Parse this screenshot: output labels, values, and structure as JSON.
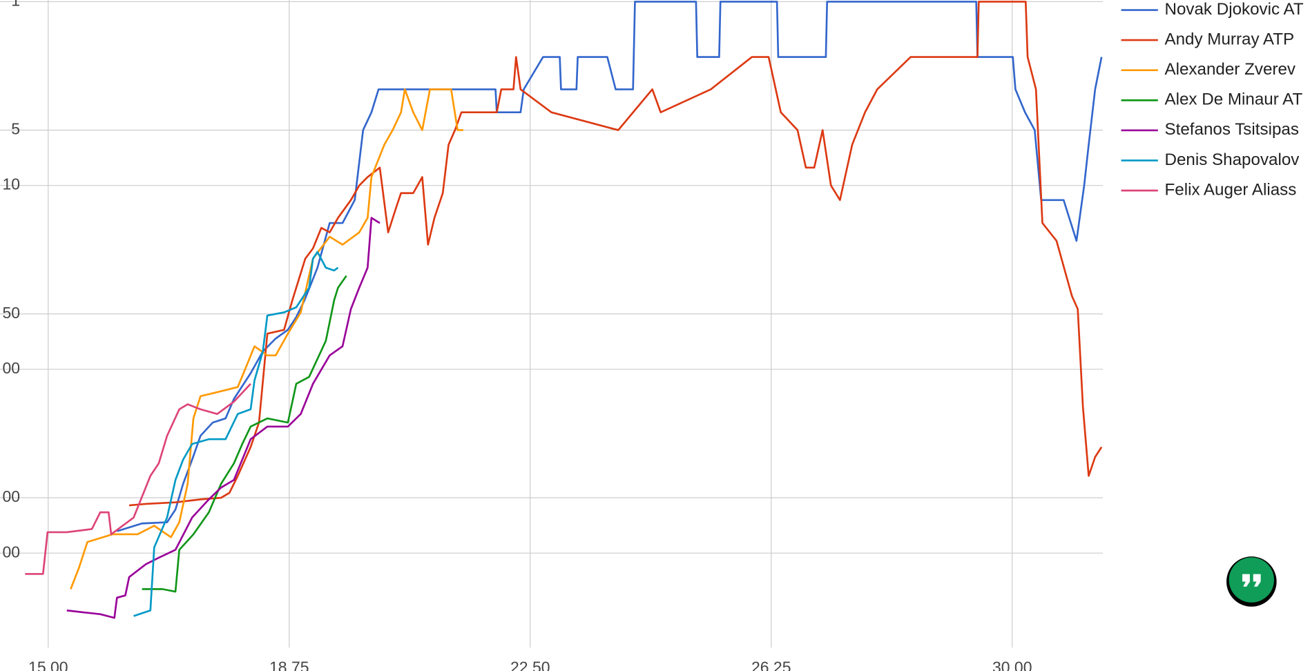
{
  "chart_data": {
    "type": "line",
    "log_scale": true,
    "y_reversed": true,
    "grid": true,
    "legend": "right",
    "xlim": [
      14.25,
      31.41
    ],
    "xticks": [
      {
        "value": 15,
        "label": "15.00"
      },
      {
        "value": 18.75,
        "label": "18.75"
      },
      {
        "value": 22.5,
        "label": "22.50"
      },
      {
        "value": 26.25,
        "label": "26.25"
      },
      {
        "value": 30,
        "label": "30.00"
      }
    ],
    "ylim": [
      1,
      3200
    ],
    "yticks": [
      1,
      5,
      10,
      50,
      {
        "value": 100,
        "label": "00"
      },
      {
        "value": 500,
        "label": "00"
      },
      {
        "value": 1000,
        "label": "00"
      }
    ],
    "series": [
      {
        "name": "Novak Djokovic AT",
        "color": "#3366cc",
        "x": [
          16.07,
          16.46,
          16.85,
          16.98,
          17.1,
          17.24,
          17.37,
          17.56,
          17.76,
          17.89,
          18.15,
          18.34,
          18.54,
          18.73,
          18.86,
          18.99,
          19.19,
          19.38,
          19.58,
          19.77,
          19.9,
          20.03,
          20.14,
          21.96,
          21.98,
          22.35,
          22.4,
          22.7,
          22.96,
          22.98,
          23.22,
          23.24,
          23.7,
          23.83,
          24.1,
          24.13,
          25.08,
          25.1,
          25.44,
          25.46,
          26.34,
          26.36,
          27.1,
          27.12,
          29.44,
          29.46,
          30.01,
          30.05,
          30.2,
          30.35,
          30.45,
          30.8,
          31.0,
          31.12,
          31.19,
          31.29,
          31.39
        ],
        "values": [
          760,
          690,
          680,
          580,
          420,
          310,
          230,
          195,
          185,
          145,
          105,
          80,
          68,
          61,
          52,
          42,
          28,
          16,
          16,
          12,
          5,
          4,
          3,
          3,
          4,
          4,
          3,
          2,
          2,
          3,
          3,
          2,
          2,
          3,
          3,
          1,
          1,
          2,
          2,
          1,
          1,
          2,
          2,
          1,
          1,
          2,
          2,
          3,
          4,
          5,
          12,
          12,
          20,
          10,
          6,
          3,
          2
        ]
      },
      {
        "name": "Andy Murray ATP",
        "color": "#dc3912",
        "x": [
          16.26,
          16.52,
          16.98,
          17.37,
          17.69,
          17.82,
          17.95,
          18.15,
          18.28,
          18.41,
          18.67,
          18.8,
          19.0,
          19.12,
          19.25,
          19.38,
          19.51,
          19.71,
          19.84,
          19.97,
          20.16,
          20.29,
          20.42,
          20.49,
          20.68,
          20.82,
          20.91,
          21.01,
          21.14,
          21.23,
          21.33,
          21.43,
          21.98,
          22.05,
          22.24,
          22.28,
          22.35,
          22.83,
          23.87,
          24.4,
          24.53,
          25.31,
          25.95,
          26.21,
          26.4,
          26.66,
          26.79,
          26.92,
          27.05,
          27.18,
          27.32,
          27.51,
          27.71,
          27.9,
          28.42,
          29.46,
          29.48,
          30.21,
          30.24,
          30.37,
          30.47,
          30.69,
          30.83,
          30.93,
          31.02,
          31.1,
          31.19,
          31.29,
          31.39
        ],
        "values": [
          550,
          540,
          530,
          510,
          500,
          470,
          380,
          265,
          195,
          64,
          61,
          42,
          25,
          22,
          17,
          18,
          15,
          12,
          10,
          9,
          8,
          18,
          13,
          11,
          11,
          9,
          21,
          15,
          11,
          6,
          5,
          4,
          4,
          3,
          3,
          2,
          3,
          4,
          5,
          3,
          4,
          3,
          2,
          2,
          4,
          5,
          8,
          8,
          5,
          10,
          12,
          6,
          4,
          3,
          2,
          2,
          1,
          1,
          2,
          3,
          16,
          20,
          30,
          40,
          47,
          160,
          380,
          300,
          265
        ]
      },
      {
        "name": "Alexander Zverev",
        "color": "#ff9900",
        "x": [
          15.35,
          15.48,
          15.61,
          16.0,
          16.39,
          16.65,
          16.91,
          17.04,
          17.17,
          17.26,
          17.37,
          17.56,
          17.95,
          18.08,
          18.21,
          18.41,
          18.54,
          18.73,
          18.93,
          19.12,
          19.38,
          19.58,
          19.84,
          19.97,
          20.03,
          20.23,
          20.36,
          20.49,
          20.55,
          20.68,
          20.82,
          20.94,
          21.07,
          21.27,
          21.37,
          21.46
        ],
        "values": [
          1570,
          1200,
          870,
          790,
          790,
          710,
          820,
          680,
          420,
          185,
          140,
          135,
          125,
          97,
          75,
          84,
          84,
          64,
          49,
          25,
          19,
          21,
          18,
          15,
          9,
          6,
          5,
          4,
          3,
          4,
          5,
          3,
          3,
          3,
          5,
          5
        ]
      },
      {
        "name": "Alex De Minaur AT",
        "color": "#109618",
        "x": [
          16.46,
          16.78,
          16.98,
          17.04,
          17.26,
          17.5,
          17.69,
          17.89,
          18.02,
          18.15,
          18.41,
          18.73,
          18.86,
          19.06,
          19.32,
          19.45,
          19.51,
          19.64
        ],
        "values": [
          1570,
          1570,
          1620,
          960,
          790,
          600,
          420,
          325,
          255,
          205,
          185,
          195,
          120,
          110,
          70,
          42,
          36,
          31
        ]
      },
      {
        "name": "Stefanos Tsitsipas",
        "color": "#990099",
        "x": [
          15.29,
          15.55,
          15.81,
          16.03,
          16.07,
          16.2,
          16.26,
          16.52,
          16.72,
          16.98,
          17.24,
          17.5,
          17.69,
          17.89,
          18.15,
          18.41,
          18.73,
          18.93,
          19.12,
          19.38,
          19.58,
          19.71,
          19.84,
          19.97,
          20.03,
          20.16
        ],
        "values": [
          2050,
          2100,
          2150,
          2250,
          1750,
          1700,
          1350,
          1150,
          1060,
          960,
          640,
          510,
          440,
          400,
          240,
          205,
          205,
          175,
          120,
          84,
          75,
          47,
          36,
          28,
          15,
          16
        ]
      },
      {
        "name": "Denis Shapovalov",
        "color": "#0099c6",
        "x": [
          16.33,
          16.59,
          16.65,
          16.85,
          16.98,
          17.1,
          17.24,
          17.5,
          17.76,
          17.95,
          18.15,
          18.21,
          18.34,
          18.41,
          18.67,
          18.86,
          19.06,
          19.12,
          19.19,
          19.32,
          19.45,
          19.51
        ],
        "values": [
          2200,
          2050,
          930,
          640,
          400,
          310,
          255,
          240,
          240,
          175,
          165,
          115,
          80,
          51,
          49,
          46,
          36,
          25,
          23,
          28,
          29,
          28
        ]
      },
      {
        "name": "Felix Auger Aliass",
        "color": "#dd4477",
        "x": [
          14.64,
          14.92,
          14.99,
          15.29,
          15.68,
          15.81,
          15.94,
          15.98,
          16.33,
          16.59,
          16.72,
          16.85,
          17.04,
          17.17,
          17.37,
          17.63,
          17.89,
          18.15
        ],
        "values": [
          1300,
          1300,
          770,
          770,
          740,
          600,
          600,
          790,
          640,
          380,
          325,
          230,
          165,
          155,
          165,
          175,
          150,
          120
        ]
      }
    ]
  }
}
